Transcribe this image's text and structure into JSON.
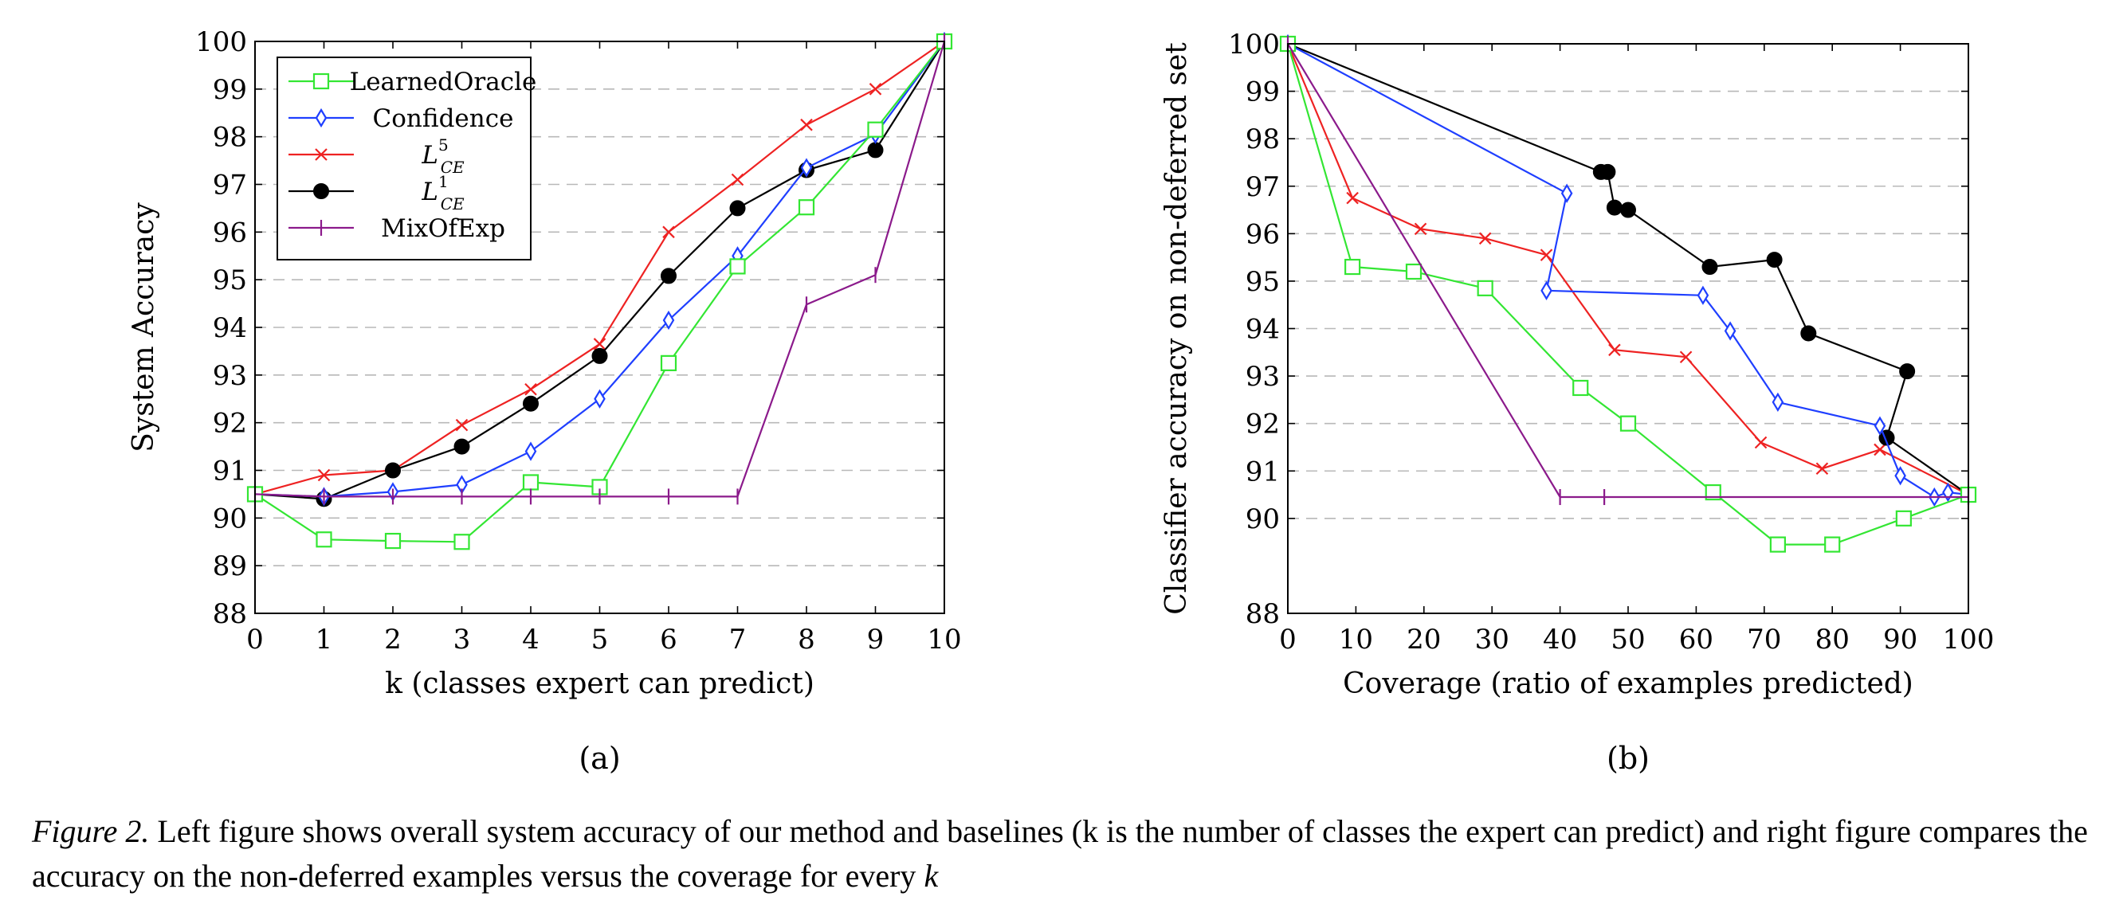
{
  "colors": {
    "LearnedOracle": "#33e633",
    "Confidence": "#1f3fff",
    "L5CE": "#ee2222",
    "L1CE": "#000000",
    "MixOfExp": "#8b1a8b",
    "grid": "#b8b8b8"
  },
  "legend": {
    "entries": [
      {
        "key": "LearnedOracle",
        "label": "LearnedOracle",
        "marker": "square"
      },
      {
        "key": "Confidence",
        "label": "Confidence",
        "marker": "diamond"
      },
      {
        "key": "L5CE",
        "label": "L",
        "sup": "5",
        "sub": "CE",
        "marker": "cross"
      },
      {
        "key": "L1CE",
        "label": "L",
        "sup": "1",
        "sub": "CE",
        "marker": "dot"
      },
      {
        "key": "MixOfExp",
        "label": "MixOfExp",
        "marker": "plus"
      }
    ]
  },
  "chart_data": [
    {
      "type": "line",
      "panel_label": "(a)",
      "xlabel": "k (classes expert can predict)",
      "ylabel": "System Accuracy",
      "xlim": [
        0,
        10
      ],
      "ylim": [
        88,
        100
      ],
      "xticks": [
        0,
        1,
        2,
        3,
        4,
        5,
        6,
        7,
        8,
        9,
        10
      ],
      "yticks": [
        88,
        89,
        90,
        91,
        92,
        93,
        94,
        95,
        96,
        97,
        98,
        99,
        100
      ],
      "grid": "horizontal dashed",
      "legend_position": "top-left",
      "series": [
        {
          "name": "LearnedOracle",
          "x": [
            0,
            1,
            2,
            3,
            4,
            5,
            6,
            7,
            8,
            9,
            10
          ],
          "y": [
            90.5,
            89.55,
            89.52,
            89.5,
            90.75,
            90.65,
            93.25,
            95.28,
            96.52,
            98.15,
            100
          ]
        },
        {
          "name": "Confidence",
          "x": [
            0,
            1,
            2,
            3,
            4,
            5,
            6,
            7,
            8,
            9,
            10
          ],
          "y": [
            90.5,
            90.45,
            90.55,
            90.7,
            91.4,
            92.5,
            94.15,
            95.5,
            97.35,
            98.05,
            100
          ]
        },
        {
          "name": "L5CE",
          "x": [
            0,
            1,
            2,
            3,
            4,
            5,
            6,
            7,
            8,
            9,
            10
          ],
          "y": [
            90.5,
            90.9,
            91.0,
            91.95,
            92.7,
            93.65,
            96.0,
            97.1,
            98.25,
            99.0,
            100
          ]
        },
        {
          "name": "L1CE",
          "x": [
            0,
            1,
            2,
            3,
            4,
            5,
            6,
            7,
            8,
            9,
            10
          ],
          "y": [
            90.5,
            90.4,
            91.0,
            91.5,
            92.4,
            93.4,
            95.08,
            96.5,
            97.3,
            97.72,
            100
          ]
        },
        {
          "name": "MixOfExp",
          "x": [
            0,
            1,
            2,
            3,
            4,
            5,
            6,
            7,
            8,
            9,
            10
          ],
          "y": [
            90.5,
            90.45,
            90.45,
            90.45,
            90.45,
            90.45,
            90.45,
            90.45,
            94.48,
            95.1,
            100
          ]
        }
      ]
    },
    {
      "type": "line",
      "panel_label": "(b)",
      "xlabel": "Coverage (ratio of examples predicted)",
      "ylabel": "Classifier accuracy on non-deferred set",
      "xlim": [
        0,
        100
      ],
      "ylim": [
        88,
        100
      ],
      "xticks": [
        0,
        10,
        20,
        30,
        40,
        50,
        60,
        70,
        80,
        90,
        100
      ],
      "yticks": [
        88,
        90,
        91,
        92,
        93,
        94,
        95,
        96,
        97,
        98,
        99,
        100
      ],
      "grid": "horizontal dashed",
      "series": [
        {
          "name": "LearnedOracle",
          "x": [
            0,
            9.5,
            18.5,
            29,
            43,
            50,
            62.5,
            72,
            80,
            90.5,
            100
          ],
          "y": [
            100,
            95.3,
            95.2,
            94.85,
            92.75,
            92.0,
            90.55,
            89.45,
            89.45,
            90.0,
            90.5
          ]
        },
        {
          "name": "Confidence",
          "x": [
            0,
            41,
            38,
            61,
            65,
            72,
            87,
            90,
            95,
            97,
            100
          ],
          "y": [
            100,
            96.85,
            94.8,
            94.7,
            93.95,
            92.45,
            91.95,
            90.9,
            90.45,
            90.55,
            90.5
          ]
        },
        {
          "name": "L5CE",
          "x": [
            0,
            9.5,
            19.5,
            29,
            38,
            48,
            58.5,
            69.5,
            78.5,
            87,
            100
          ],
          "y": [
            100,
            96.75,
            96.1,
            95.9,
            95.55,
            93.55,
            93.4,
            91.6,
            91.05,
            91.45,
            90.5
          ]
        },
        {
          "name": "L1CE",
          "x": [
            0,
            46,
            47,
            48,
            50,
            62,
            71.5,
            76.5,
            91,
            88,
            100
          ],
          "y": [
            100,
            97.3,
            97.3,
            96.55,
            96.5,
            95.3,
            95.45,
            93.9,
            93.1,
            91.7,
            90.5
          ]
        },
        {
          "name": "MixOfExp",
          "x": [
            0,
            40,
            46.5,
            100
          ],
          "y": [
            100,
            90.45,
            90.45,
            90.45
          ]
        }
      ]
    }
  ],
  "caption": {
    "lead": "Figure 2.",
    "text": " Left figure shows overall system accuracy of our method and baselines (k is the number of classes the expert can predict) and right figure compares the accuracy on the non-deferred examples versus the coverage for every ",
    "var": "k"
  }
}
